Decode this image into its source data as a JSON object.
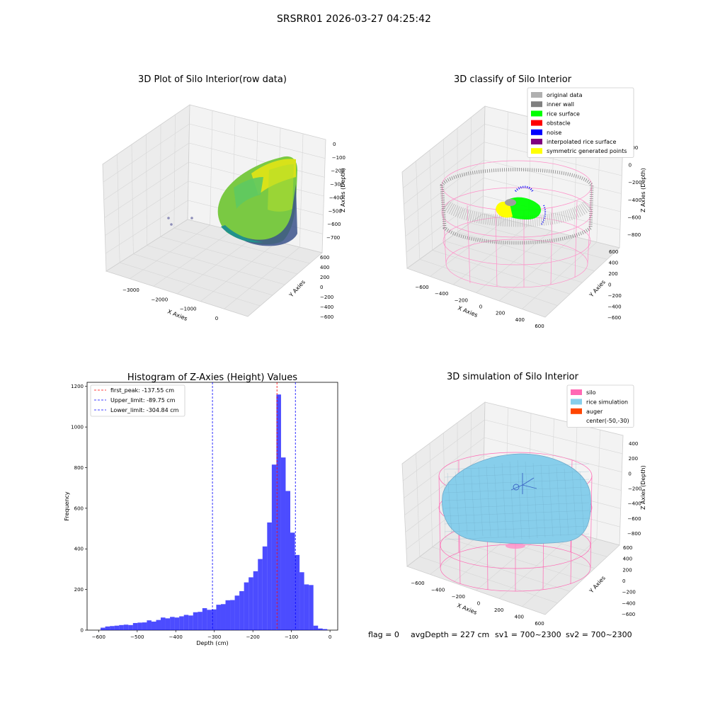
{
  "suptitle": "SRSRR01 2026-03-27 04:25:42",
  "panel1": {
    "title": "3D Plot of Silo Interior(row data)",
    "xlabel": "X Axies",
    "ylabel": "Y Axies",
    "zlabel": "Z Axies (Depth)",
    "xticks": [
      "−3000",
      "−2000",
      "−1000",
      "0"
    ],
    "yticks": [
      "600",
      "400",
      "200",
      "0",
      "−200",
      "−400",
      "−600"
    ],
    "zticks": [
      "0",
      "−100",
      "−200",
      "−300",
      "−400",
      "−500",
      "−600",
      "−700"
    ]
  },
  "panel2": {
    "title": "3D classify of Silo Interior",
    "xlabel": "X Axies",
    "ylabel": "Y Axies",
    "zlabel": "Z Axies (Depth)",
    "xticks": [
      "−600",
      "−400",
      "−200",
      "0",
      "200",
      "400",
      "600"
    ],
    "yticks": [
      "600",
      "400",
      "200",
      "0",
      "−200",
      "−400",
      "−600"
    ],
    "zticks": [
      "200",
      "0",
      "−200",
      "−400",
      "−600",
      "−800"
    ],
    "legend": [
      {
        "label": "original data",
        "color": "#b0b0b0"
      },
      {
        "label": "inner wall",
        "color": "#808080"
      },
      {
        "label": "rice surface",
        "color": "#00ff00"
      },
      {
        "label": "obstacle",
        "color": "#ff0000"
      },
      {
        "label": "noise",
        "color": "#0000ff"
      },
      {
        "label": "interpolated rice surface",
        "color": "#800080"
      },
      {
        "label": "symmetric generated points",
        "color": "#ffff00"
      }
    ]
  },
  "panel4": {
    "title": "3D simulation of Silo Interior",
    "xlabel": "X Axies",
    "ylabel": "Y Axies",
    "zlabel": "Z Axies (Depth)",
    "xticks": [
      "−600",
      "−400",
      "−200",
      "0",
      "200",
      "400",
      "600"
    ],
    "yticks": [
      "600",
      "400",
      "200",
      "0",
      "−200",
      "−400",
      "−600"
    ],
    "zticks": [
      "400",
      "200",
      "0",
      "−200",
      "−400",
      "−600",
      "−800"
    ],
    "legend": [
      {
        "label": "silo",
        "color": "#ff69b4"
      },
      {
        "label": "rice simulation",
        "color": "#87ceeb"
      },
      {
        "label": "auger",
        "color": "#ff4500"
      },
      {
        "label": "center(-50,-30)",
        "color": ""
      }
    ]
  },
  "status": {
    "flag": "flag = 0",
    "avg": "avgDepth = 227 cm",
    "sv1": "sv1 = 700~2300",
    "sv2": "sv2 = 700~2300"
  },
  "chart_data": [
    {
      "type": "bar",
      "title": "Histogram of Z-Axies (Height) Values",
      "xlabel": "Depth (cm)",
      "ylabel": "Frequency",
      "xlim": [
        -630,
        20
      ],
      "ylim": [
        0,
        1220
      ],
      "xticks": [
        -600,
        -500,
        -400,
        -300,
        -200,
        -100,
        0
      ],
      "yticks": [
        0,
        200,
        400,
        600,
        800,
        1000,
        1200
      ],
      "bar_color": "#0000ff",
      "bins": [
        {
          "x0": -595,
          "x1": -583,
          "count": 12
        },
        {
          "x0": -583,
          "x1": -571,
          "count": 18
        },
        {
          "x0": -571,
          "x1": -559,
          "count": 20
        },
        {
          "x0": -559,
          "x1": -547,
          "count": 22
        },
        {
          "x0": -547,
          "x1": -535,
          "count": 25
        },
        {
          "x0": -535,
          "x1": -523,
          "count": 27
        },
        {
          "x0": -523,
          "x1": -511,
          "count": 25
        },
        {
          "x0": -511,
          "x1": -499,
          "count": 35
        },
        {
          "x0": -499,
          "x1": -487,
          "count": 37
        },
        {
          "x0": -487,
          "x1": -475,
          "count": 38
        },
        {
          "x0": -475,
          "x1": -463,
          "count": 48
        },
        {
          "x0": -463,
          "x1": -451,
          "count": 42
        },
        {
          "x0": -451,
          "x1": -439,
          "count": 50
        },
        {
          "x0": -439,
          "x1": -427,
          "count": 62
        },
        {
          "x0": -427,
          "x1": -415,
          "count": 58
        },
        {
          "x0": -415,
          "x1": -403,
          "count": 65
        },
        {
          "x0": -403,
          "x1": -391,
          "count": 62
        },
        {
          "x0": -391,
          "x1": -379,
          "count": 68
        },
        {
          "x0": -379,
          "x1": -367,
          "count": 75
        },
        {
          "x0": -367,
          "x1": -355,
          "count": 72
        },
        {
          "x0": -355,
          "x1": -343,
          "count": 88
        },
        {
          "x0": -343,
          "x1": -331,
          "count": 90
        },
        {
          "x0": -331,
          "x1": -319,
          "count": 108
        },
        {
          "x0": -319,
          "x1": -307,
          "count": 100
        },
        {
          "x0": -307,
          "x1": -295,
          "count": 102
        },
        {
          "x0": -295,
          "x1": -283,
          "count": 125
        },
        {
          "x0": -283,
          "x1": -271,
          "count": 128
        },
        {
          "x0": -271,
          "x1": -259,
          "count": 147
        },
        {
          "x0": -259,
          "x1": -247,
          "count": 148
        },
        {
          "x0": -247,
          "x1": -235,
          "count": 170
        },
        {
          "x0": -235,
          "x1": -223,
          "count": 192
        },
        {
          "x0": -223,
          "x1": -211,
          "count": 235
        },
        {
          "x0": -211,
          "x1": -199,
          "count": 260
        },
        {
          "x0": -199,
          "x1": -187,
          "count": 290
        },
        {
          "x0": -187,
          "x1": -175,
          "count": 350
        },
        {
          "x0": -175,
          "x1": -163,
          "count": 412
        },
        {
          "x0": -163,
          "x1": -151,
          "count": 530
        },
        {
          "x0": -151,
          "x1": -139,
          "count": 815
        },
        {
          "x0": -139,
          "x1": -127,
          "count": 1160
        },
        {
          "x0": -127,
          "x1": -115,
          "count": 850
        },
        {
          "x0": -115,
          "x1": -103,
          "count": 685
        },
        {
          "x0": -103,
          "x1": -91,
          "count": 480
        },
        {
          "x0": -91,
          "x1": -79,
          "count": 370
        },
        {
          "x0": -79,
          "x1": -67,
          "count": 285
        },
        {
          "x0": -67,
          "x1": -55,
          "count": 225
        },
        {
          "x0": -55,
          "x1": -43,
          "count": 222
        },
        {
          "x0": -43,
          "x1": -31,
          "count": 22
        },
        {
          "x0": -31,
          "x1": -19,
          "count": 8
        },
        {
          "x0": -19,
          "x1": -7,
          "count": 5
        }
      ],
      "vlines": [
        {
          "label": "first_peak: -137.55 cm",
          "x": -137.55,
          "color": "#ff0000"
        },
        {
          "label": "Upper_limit: -89.75 cm",
          "x": -89.75,
          "color": "#0000ff"
        },
        {
          "label": "Lower_limit: -304.84 cm",
          "x": -304.84,
          "color": "#0000ff"
        }
      ]
    }
  ]
}
